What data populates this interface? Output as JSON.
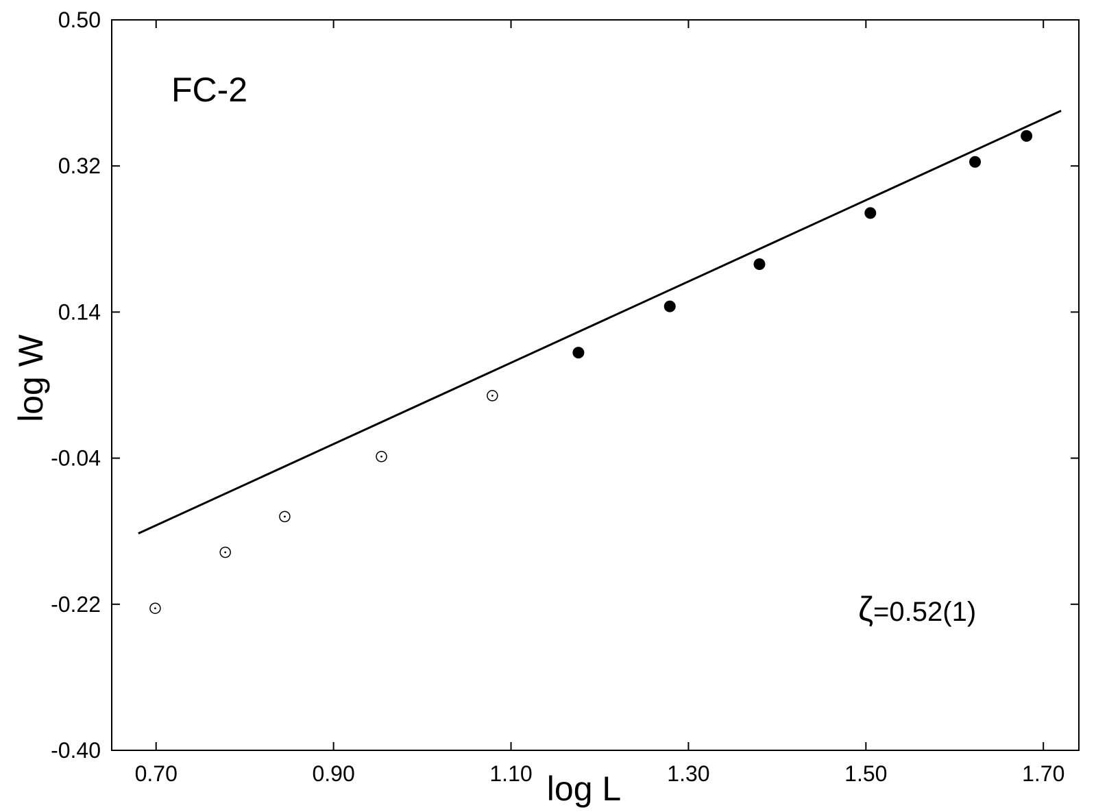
{
  "chart_data": {
    "type": "scatter",
    "title": "",
    "xlabel": "log L",
    "ylabel": "log W",
    "xlim": [
      0.65,
      1.74
    ],
    "ylim": [
      -0.4,
      0.5
    ],
    "xticks": [
      "0.70",
      "0.90",
      "1.10",
      "1.30",
      "1.50",
      "1.70"
    ],
    "yticks": [
      "0.50",
      "0.32",
      "0.14",
      "-0.04",
      "-0.22",
      "-0.40"
    ],
    "grid": false,
    "annotations": {
      "label": "FC-2",
      "zeta_symbol": "ζ",
      "zeta_value": "=0.52(1)"
    },
    "series": [
      {
        "marker": "open-dot",
        "points": [
          [
            0.699,
            -0.225
          ],
          [
            0.778,
            -0.156
          ],
          [
            0.845,
            -0.112
          ],
          [
            0.954,
            -0.038
          ],
          [
            1.079,
            0.037
          ]
        ]
      },
      {
        "marker": "filled",
        "points": [
          [
            1.176,
            0.09
          ],
          [
            1.279,
            0.147
          ],
          [
            1.38,
            0.199
          ],
          [
            1.505,
            0.262
          ],
          [
            1.623,
            0.325
          ],
          [
            1.681,
            0.357
          ]
        ]
      }
    ],
    "fit_line": {
      "x": [
        0.68,
        1.72
      ],
      "y": [
        -0.1328,
        0.388
      ]
    }
  }
}
